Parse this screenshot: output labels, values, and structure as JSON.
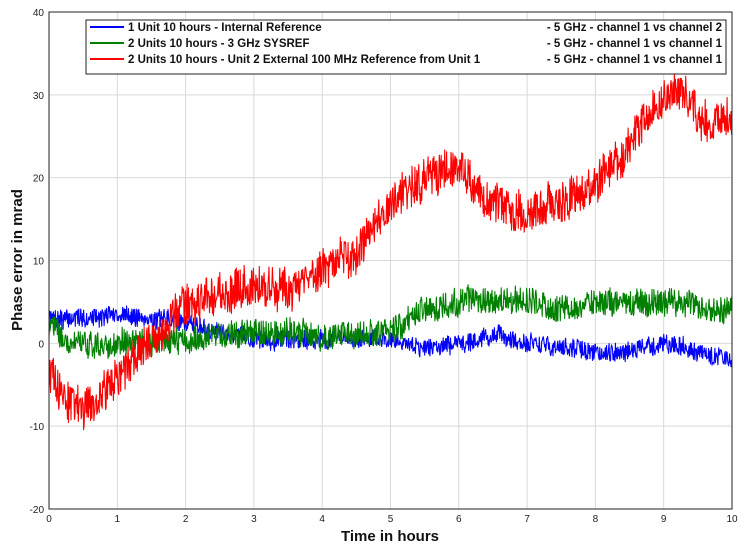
{
  "chart_data": {
    "type": "line",
    "title": "",
    "xlabel": "Time in hours",
    "ylabel": "Phase error in mrad",
    "xlim": [
      0,
      10
    ],
    "ylim": [
      -20,
      40
    ],
    "xticks": [
      "0",
      "1",
      "2",
      "3",
      "4",
      "5",
      "6",
      "7",
      "8",
      "9",
      "10"
    ],
    "yticks": [
      "-20",
      "-10",
      "0",
      "10",
      "20",
      "30",
      "40"
    ],
    "grid": true,
    "legend_position": "top",
    "series": [
      {
        "name": "1 Unit 10 hours - Internal Reference",
        "name_suffix": "- 5 GHz - channel 1 vs channel 2",
        "color": "#0000ff",
        "noise": 1.1,
        "x": [
          0,
          0.5,
          1,
          1.5,
          2,
          2.5,
          3,
          3.5,
          4,
          4.5,
          5,
          5.5,
          6,
          6.5,
          7,
          7.5,
          8,
          8.5,
          9,
          9.5,
          10
        ],
        "y": [
          3,
          3,
          3.5,
          3,
          2.5,
          1.5,
          0.5,
          0.5,
          0.5,
          0.5,
          0.5,
          -0.5,
          0,
          1,
          0,
          -0.5,
          -1,
          -1,
          0,
          -1,
          -2
        ]
      },
      {
        "name": "2 Units 10 hours - 3 GHz SYSREF",
        "name_suffix": "- 5 GHz - channel 1 vs channel 1",
        "color": "#008000",
        "noise": 1.6,
        "x": [
          0,
          0.5,
          1,
          1.5,
          2,
          2.5,
          3,
          3.5,
          4,
          4.5,
          5,
          5.5,
          6,
          6.5,
          7,
          7.5,
          8,
          8.5,
          9,
          9.5,
          10
        ],
        "y": [
          2,
          -0.5,
          0,
          0,
          0.5,
          1,
          1.5,
          1.5,
          0.5,
          1,
          1.5,
          4,
          5,
          5,
          5,
          4,
          5,
          5,
          5,
          4.5,
          4
        ]
      },
      {
        "name": "2 Units 10 hours - Unit 2 External 100 MHz Reference from Unit 1",
        "name_suffix": "- 5 GHz - channel 1 vs channel 1",
        "color": "#ff0000",
        "noise": 2.4,
        "x": [
          0,
          0.25,
          0.5,
          0.75,
          1,
          1.5,
          2,
          2.5,
          3,
          3.5,
          4,
          4.5,
          5,
          5.5,
          6,
          6.5,
          7,
          7.5,
          8,
          8.5,
          9,
          9.25,
          9.5,
          10
        ],
        "y": [
          -4,
          -7,
          -8,
          -6,
          -4,
          0,
          5,
          6,
          7,
          6,
          9,
          11,
          17,
          20,
          21,
          17,
          16,
          17,
          19,
          24,
          30,
          31,
          27,
          27
        ]
      }
    ]
  }
}
